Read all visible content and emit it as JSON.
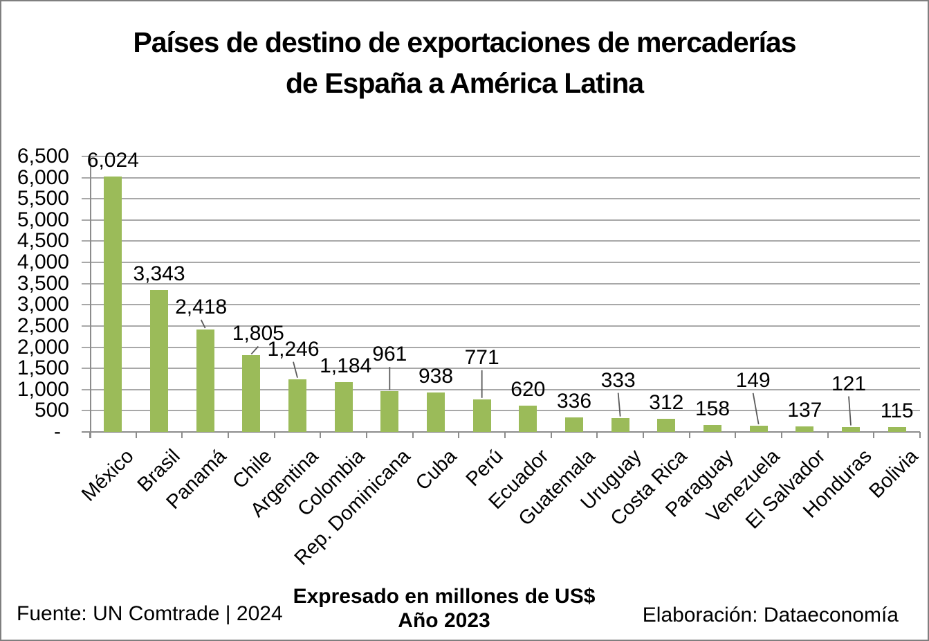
{
  "chart_data": {
    "type": "bar",
    "title_line1": "Países de destino de exportaciones de mercaderías",
    "title_line2": "de España a América Latina",
    "categories": [
      "México",
      "Brasil",
      "Panamá",
      "Chile",
      "Argentina",
      "Colombia",
      "Rep. Dominicana",
      "Cuba",
      "Perú",
      "Ecuador",
      "Guatemala",
      "Uruguay",
      "Costa Rica",
      "Paraguay",
      "Venezuela",
      "El Salvador",
      "Honduras",
      "Bolivia"
    ],
    "values": [
      6024,
      3343,
      2418,
      1805,
      1246,
      1184,
      961,
      938,
      771,
      620,
      336,
      333,
      312,
      158,
      149,
      137,
      121,
      115
    ],
    "value_labels": [
      "6,024",
      "3,343",
      "2,418",
      "1,805",
      "1,246",
      "1,184",
      "961",
      "938",
      "771",
      "620",
      "336",
      "333",
      "312",
      "158",
      "149",
      "137",
      "121",
      "115"
    ],
    "xlabel": "",
    "ylabel": "",
    "ylim": [
      0,
      6500
    ],
    "ytick_step": 500,
    "ytick_labels": [
      "-",
      "500",
      "1,000",
      "1,500",
      "2,000",
      "2,500",
      "3,000",
      "3,500",
      "4,000",
      "4,500",
      "5,000",
      "5,500",
      "6,000",
      "6,500"
    ],
    "grid": true,
    "legend_position": "none",
    "bar_color": "#9BBB59",
    "gridline_color": "#A8A8A8",
    "axis_color": "#8C8C8C",
    "leader_line_color": "#595959",
    "label_lifts": [
      0,
      0,
      16,
      15,
      27,
      0,
      37,
      0,
      44,
      0,
      0,
      38,
      0,
      0,
      49,
      0,
      46,
      0
    ],
    "label_dx": [
      0,
      0,
      -6,
      10,
      -6,
      3,
      0,
      0,
      0,
      0,
      0,
      -3,
      0,
      0,
      -8,
      0,
      -3,
      0
    ]
  },
  "footer": {
    "source": "Fuente: UN Comtrade | 2024",
    "units_line1": "Expresado en millones de US$",
    "units_line2": "Año 2023",
    "credit": "Elaboración: Dataeconomía"
  }
}
